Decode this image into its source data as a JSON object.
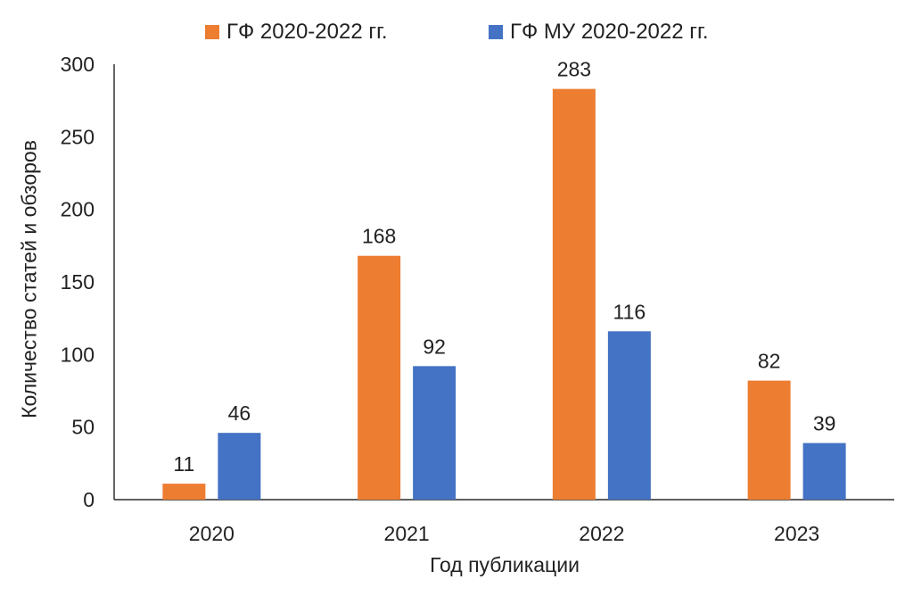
{
  "chart_data": {
    "type": "bar",
    "title": "",
    "xlabel": "Год публикации",
    "ylabel": "Количество статей и обзоров",
    "categories": [
      "2020",
      "2021",
      "2022",
      "2023"
    ],
    "ylim": [
      0,
      300
    ],
    "yticks": [
      "0",
      "50",
      "100",
      "150",
      "200",
      "250",
      "300"
    ],
    "grid": false,
    "legend_position": "top",
    "series": [
      {
        "name": "ГФ 2020-2022 гг.",
        "color": "#ED7D31",
        "values": [
          11,
          168,
          283,
          82
        ]
      },
      {
        "name": "ГФ МУ 2020-2022 гг.",
        "color": "#4472C4",
        "values": [
          46,
          92,
          116,
          39
        ]
      }
    ]
  }
}
